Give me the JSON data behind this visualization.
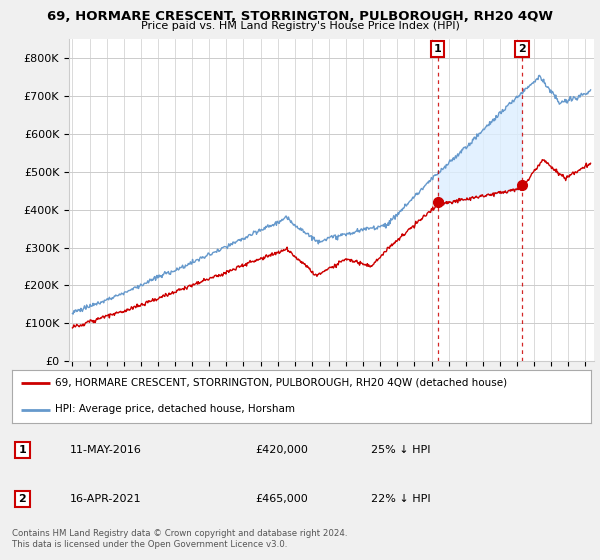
{
  "title": "69, HORMARE CRESCENT, STORRINGTON, PULBOROUGH, RH20 4QW",
  "subtitle": "Price paid vs. HM Land Registry's House Price Index (HPI)",
  "ylim": [
    0,
    850000
  ],
  "xlim_start": 1994.8,
  "xlim_end": 2025.5,
  "yticks": [
    0,
    100000,
    200000,
    300000,
    400000,
    500000,
    600000,
    700000,
    800000
  ],
  "ytick_labels": [
    "£0",
    "£100K",
    "£200K",
    "£300K",
    "£400K",
    "£500K",
    "£600K",
    "£700K",
    "£800K"
  ],
  "bg_color": "#f0f0f0",
  "plot_bg_color": "#ffffff",
  "grid_color": "#cccccc",
  "line1_color": "#cc0000",
  "line2_color": "#6699cc",
  "fill_color": "#ddeeff",
  "marker1_date": 2016.36,
  "marker1_value": 420000,
  "marker2_date": 2021.29,
  "marker2_value": 465000,
  "legend_line1": "69, HORMARE CRESCENT, STORRINGTON, PULBOROUGH, RH20 4QW (detached house)",
  "legend_line2": "HPI: Average price, detached house, Horsham",
  "annot1_date": "11-MAY-2016",
  "annot1_price": "£420,000",
  "annot1_hpi": "25% ↓ HPI",
  "annot2_date": "16-APR-2021",
  "annot2_price": "£465,000",
  "annot2_hpi": "22% ↓ HPI",
  "footer": "Contains HM Land Registry data © Crown copyright and database right 2024.\nThis data is licensed under the Open Government Licence v3.0.",
  "xticks": [
    1995,
    1996,
    1997,
    1998,
    1999,
    2000,
    2001,
    2002,
    2003,
    2004,
    2005,
    2006,
    2007,
    2008,
    2009,
    2010,
    2011,
    2012,
    2013,
    2014,
    2015,
    2016,
    2017,
    2018,
    2019,
    2020,
    2021,
    2022,
    2023,
    2024,
    2025
  ]
}
